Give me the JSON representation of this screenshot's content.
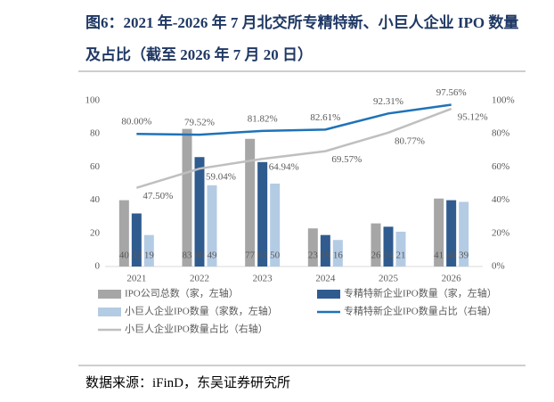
{
  "chart_data": {
    "type": "combo",
    "title": "图6：2021 年-2026 年 7 月北交所专精特新、小巨人企业 IPO 数量及占比（截至 2026 年 7 月 20 日）",
    "categories": [
      "2021",
      "2022",
      "2023",
      "2024",
      "2025",
      "2026"
    ],
    "ylim": [
      0,
      100
    ],
    "yticks": [
      0,
      20,
      40,
      60,
      80,
      100
    ],
    "y2lim": [
      0,
      100
    ],
    "y2ticks": [
      {
        "value": 0,
        "label": "0%"
      },
      {
        "value": 20,
        "label": "20%"
      },
      {
        "value": 40,
        "label": "40%"
      },
      {
        "value": 60,
        "label": "60%"
      },
      {
        "value": 80,
        "label": "80%"
      },
      {
        "value": 100,
        "label": "100%"
      }
    ],
    "grid": false,
    "series": [
      {
        "name": "IPO公司总数（家，左轴）",
        "type": "bar",
        "color": "#a6a6a6",
        "values": [
          40,
          83,
          77,
          23,
          26,
          41
        ]
      },
      {
        "name": "专精特新企业IPO数量（家，左轴）",
        "type": "bar",
        "color": "#2f5b8f",
        "values": [
          32,
          66,
          63,
          19,
          24,
          40
        ]
      },
      {
        "name": "小巨人企业IPO数量（家数，左轴）",
        "type": "bar",
        "color": "#b4cbe4",
        "values": [
          19,
          49,
          50,
          16,
          21,
          39
        ]
      },
      {
        "name": "专精特新企业IPO数量占比（右轴）",
        "type": "line",
        "axis": "y2",
        "color": "#1f72b8",
        "values": [
          80.0,
          79.52,
          81.82,
          82.61,
          92.31,
          97.56
        ],
        "value_labels": [
          "80.00%",
          "79.52%",
          "81.82%",
          "82.61%",
          "92.31%",
          "97.56%"
        ]
      },
      {
        "name": "小巨人企业IPO数量占比（右轴）",
        "type": "line",
        "axis": "y2",
        "color": "#bfbfbf",
        "values": [
          47.5,
          59.04,
          64.94,
          69.57,
          80.77,
          95.12
        ],
        "value_labels": [
          "47.50%",
          "59.04%",
          "64.94%",
          "69.57%",
          "80.77%",
          "95.12%"
        ]
      }
    ]
  },
  "source": "数据来源：iFinD，东吴证券研究所"
}
